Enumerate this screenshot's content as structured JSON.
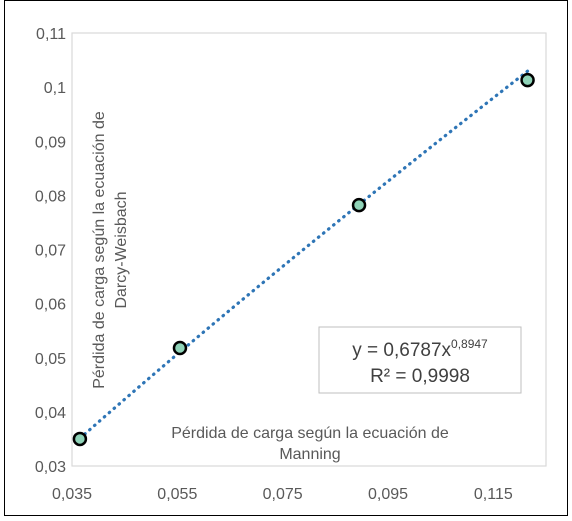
{
  "chart_data": {
    "type": "scatter",
    "title": "",
    "xlabel": "Pérdida de carga según la ecuación de Manning",
    "ylabel": "Pérdida de carga según la ecuación de Darcy-Weisbach",
    "xlabel_lines": [
      "Pérdida de carga según la ecuación de",
      "Manning"
    ],
    "ylabel_lines": [
      "Pérdida de carga según la ecuación de",
      "Darcy-Weisbach"
    ],
    "xlim": [
      0.035,
      0.125
    ],
    "ylim": [
      0.03,
      0.11
    ],
    "x_ticks": [
      "0,035",
      "0,055",
      "0,075",
      "0,095",
      "0,115"
    ],
    "x_tick_values": [
      0.035,
      0.055,
      0.075,
      0.095,
      0.115
    ],
    "y_ticks": [
      "0,03",
      "0,04",
      "0,05",
      "0,06",
      "0,07",
      "0,08",
      "0,09",
      "0,1",
      "0,11"
    ],
    "y_tick_values": [
      0.03,
      0.04,
      0.05,
      0.06,
      0.07,
      0.08,
      0.09,
      0.1,
      0.11
    ],
    "grid": false,
    "series": [
      {
        "points": [
          {
            "x": 0.0365,
            "y": 0.035
          },
          {
            "x": 0.0555,
            "y": 0.0518
          },
          {
            "x": 0.0895,
            "y": 0.0782
          },
          {
            "x": 0.1215,
            "y": 0.1013
          }
        ],
        "marker_fill": "#8fd3b8",
        "marker_stroke": "#000000"
      }
    ],
    "trendline": {
      "type": "power",
      "a": 0.6787,
      "b": 0.8947,
      "color": "#2e75b6",
      "style": "dotted",
      "equation_base": "y = 0,6787x",
      "equation_exponent": "0,8947",
      "r_squared": "R² = 0,9998"
    }
  }
}
